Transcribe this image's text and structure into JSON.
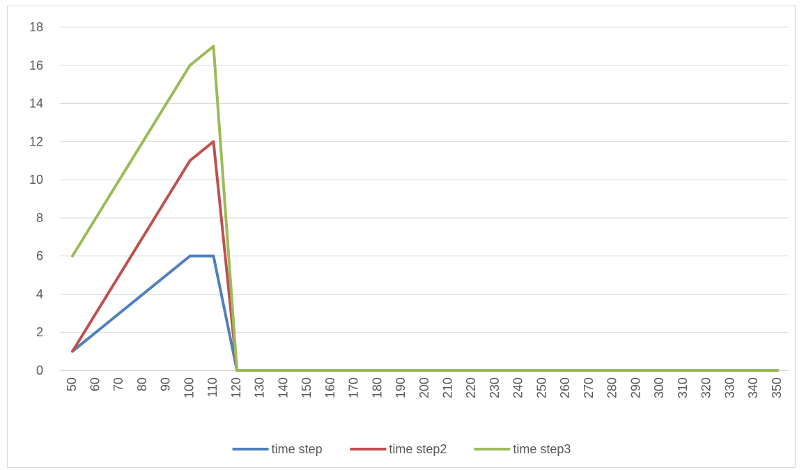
{
  "chart_data": {
    "type": "line",
    "title": "",
    "xlabel": "",
    "ylabel": "",
    "x": [
      50,
      60,
      70,
      80,
      90,
      100,
      110,
      120,
      130,
      140,
      150,
      160,
      170,
      180,
      190,
      200,
      210,
      220,
      230,
      240,
      250,
      260,
      270,
      280,
      290,
      300,
      310,
      320,
      330,
      340,
      350
    ],
    "ylim": [
      0,
      18
    ],
    "yticks": [
      0,
      2,
      4,
      6,
      8,
      10,
      12,
      14,
      16,
      18
    ],
    "grid": "horizontal",
    "legend_position": "bottom",
    "series": [
      {
        "name": "time step",
        "color": "#4f81bd",
        "values": [
          1,
          2,
          3,
          4,
          5,
          6,
          6,
          0,
          0,
          0,
          0,
          0,
          0,
          0,
          0,
          0,
          0,
          0,
          0,
          0,
          0,
          0,
          0,
          0,
          0,
          0,
          0,
          0,
          0,
          0,
          0
        ]
      },
      {
        "name": "time step2",
        "color": "#c0504d",
        "values": [
          1,
          3,
          5,
          7,
          9,
          11,
          12,
          0,
          0,
          0,
          0,
          0,
          0,
          0,
          0,
          0,
          0,
          0,
          0,
          0,
          0,
          0,
          0,
          0,
          0,
          0,
          0,
          0,
          0,
          0,
          0
        ]
      },
      {
        "name": "time step3",
        "color": "#9bbb59",
        "values": [
          6,
          8,
          10,
          12,
          14,
          16,
          17,
          0,
          0,
          0,
          0,
          0,
          0,
          0,
          0,
          0,
          0,
          0,
          0,
          0,
          0,
          0,
          0,
          0,
          0,
          0,
          0,
          0,
          0,
          0,
          0
        ]
      }
    ]
  }
}
